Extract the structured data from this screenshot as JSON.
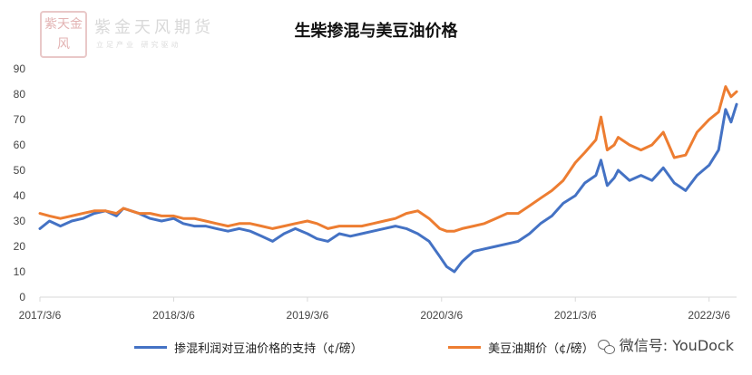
{
  "logo": {
    "seal_text": "紫天金风",
    "company_name": "紫金天风期货",
    "slogan": "立足产业 研究驱动"
  },
  "watermark": {
    "text": "微信号: YouDock"
  },
  "colors": {
    "support_series": "#4472C4",
    "futures_series": "#ED7D31",
    "axis": "#d9d9d9"
  },
  "chart_data": {
    "type": "line",
    "title": "生柴掺混与美豆油价格",
    "xlabel": "",
    "ylabel": "",
    "ylim": [
      0,
      90
    ],
    "yticks": [
      0,
      10,
      20,
      30,
      40,
      50,
      60,
      70,
      80,
      90
    ],
    "xlim": [
      "2017-03-06",
      "2022-05-20"
    ],
    "xtick_labels": [
      "2017/3/6",
      "2018/3/6",
      "2019/3/6",
      "2020/3/6",
      "2021/3/6",
      "2022/3/6"
    ],
    "grid": false,
    "legend_position": "bottom",
    "series": [
      {
        "name": "掺混利润对豆油价格的支持（¢/磅）",
        "color": "#4472C4",
        "points": [
          [
            "2017-03-06",
            27
          ],
          [
            "2017-04-01",
            30
          ],
          [
            "2017-05-01",
            28
          ],
          [
            "2017-06-01",
            30
          ],
          [
            "2017-07-01",
            31
          ],
          [
            "2017-08-01",
            33
          ],
          [
            "2017-09-01",
            34
          ],
          [
            "2017-10-01",
            32
          ],
          [
            "2017-10-20",
            35
          ],
          [
            "2017-11-10",
            34
          ],
          [
            "2017-12-01",
            33
          ],
          [
            "2018-01-01",
            31
          ],
          [
            "2018-02-01",
            30
          ],
          [
            "2018-03-06",
            31
          ],
          [
            "2018-04-01",
            29
          ],
          [
            "2018-05-01",
            28
          ],
          [
            "2018-06-01",
            28
          ],
          [
            "2018-07-01",
            27
          ],
          [
            "2018-08-01",
            26
          ],
          [
            "2018-09-01",
            27
          ],
          [
            "2018-10-01",
            26
          ],
          [
            "2018-11-01",
            24
          ],
          [
            "2018-12-01",
            22
          ],
          [
            "2019-01-01",
            25
          ],
          [
            "2019-02-01",
            27
          ],
          [
            "2019-03-06",
            25
          ],
          [
            "2019-04-01",
            23
          ],
          [
            "2019-05-01",
            22
          ],
          [
            "2019-06-01",
            25
          ],
          [
            "2019-07-01",
            24
          ],
          [
            "2019-08-01",
            25
          ],
          [
            "2019-09-01",
            26
          ],
          [
            "2019-10-01",
            27
          ],
          [
            "2019-11-01",
            28
          ],
          [
            "2019-12-01",
            27
          ],
          [
            "2020-01-01",
            25
          ],
          [
            "2020-02-01",
            22
          ],
          [
            "2020-03-01",
            16
          ],
          [
            "2020-03-20",
            12
          ],
          [
            "2020-04-10",
            10
          ],
          [
            "2020-05-01",
            14
          ],
          [
            "2020-06-01",
            18
          ],
          [
            "2020-07-01",
            19
          ],
          [
            "2020-08-01",
            20
          ],
          [
            "2020-09-01",
            21
          ],
          [
            "2020-10-01",
            22
          ],
          [
            "2020-11-01",
            25
          ],
          [
            "2020-12-01",
            29
          ],
          [
            "2021-01-01",
            32
          ],
          [
            "2021-02-01",
            37
          ],
          [
            "2021-03-06",
            40
          ],
          [
            "2021-04-01",
            45
          ],
          [
            "2021-05-01",
            48
          ],
          [
            "2021-05-15",
            54
          ],
          [
            "2021-06-01",
            44
          ],
          [
            "2021-06-20",
            47
          ],
          [
            "2021-07-01",
            50
          ],
          [
            "2021-08-01",
            46
          ],
          [
            "2021-09-01",
            48
          ],
          [
            "2021-10-01",
            46
          ],
          [
            "2021-11-01",
            51
          ],
          [
            "2021-12-01",
            45
          ],
          [
            "2022-01-01",
            42
          ],
          [
            "2022-02-01",
            48
          ],
          [
            "2022-03-06",
            52
          ],
          [
            "2022-04-01",
            58
          ],
          [
            "2022-04-20",
            74
          ],
          [
            "2022-05-05",
            69
          ],
          [
            "2022-05-20",
            76
          ]
        ]
      },
      {
        "name": "美豆油期价（¢/磅）",
        "color": "#ED7D31",
        "points": [
          [
            "2017-03-06",
            33
          ],
          [
            "2017-04-01",
            32
          ],
          [
            "2017-05-01",
            31
          ],
          [
            "2017-06-01",
            32
          ],
          [
            "2017-07-01",
            33
          ],
          [
            "2017-08-01",
            34
          ],
          [
            "2017-09-01",
            34
          ],
          [
            "2017-10-01",
            33
          ],
          [
            "2017-10-20",
            35
          ],
          [
            "2017-11-10",
            34
          ],
          [
            "2017-12-01",
            33
          ],
          [
            "2018-01-01",
            33
          ],
          [
            "2018-02-01",
            32
          ],
          [
            "2018-03-06",
            32
          ],
          [
            "2018-04-01",
            31
          ],
          [
            "2018-05-01",
            31
          ],
          [
            "2018-06-01",
            30
          ],
          [
            "2018-07-01",
            29
          ],
          [
            "2018-08-01",
            28
          ],
          [
            "2018-09-01",
            29
          ],
          [
            "2018-10-01",
            29
          ],
          [
            "2018-11-01",
            28
          ],
          [
            "2018-12-01",
            27
          ],
          [
            "2019-01-01",
            28
          ],
          [
            "2019-02-01",
            29
          ],
          [
            "2019-03-06",
            30
          ],
          [
            "2019-04-01",
            29
          ],
          [
            "2019-05-01",
            27
          ],
          [
            "2019-06-01",
            28
          ],
          [
            "2019-07-01",
            28
          ],
          [
            "2019-08-01",
            28
          ],
          [
            "2019-09-01",
            29
          ],
          [
            "2019-10-01",
            30
          ],
          [
            "2019-11-01",
            31
          ],
          [
            "2019-12-01",
            33
          ],
          [
            "2020-01-01",
            34
          ],
          [
            "2020-02-01",
            31
          ],
          [
            "2020-03-01",
            27
          ],
          [
            "2020-03-20",
            26
          ],
          [
            "2020-04-10",
            26
          ],
          [
            "2020-05-01",
            27
          ],
          [
            "2020-06-01",
            28
          ],
          [
            "2020-07-01",
            29
          ],
          [
            "2020-08-01",
            31
          ],
          [
            "2020-09-01",
            33
          ],
          [
            "2020-10-01",
            33
          ],
          [
            "2020-11-01",
            36
          ],
          [
            "2020-12-01",
            39
          ],
          [
            "2021-01-01",
            42
          ],
          [
            "2021-02-01",
            46
          ],
          [
            "2021-03-06",
            53
          ],
          [
            "2021-04-01",
            57
          ],
          [
            "2021-05-01",
            62
          ],
          [
            "2021-05-15",
            71
          ],
          [
            "2021-06-01",
            58
          ],
          [
            "2021-06-20",
            60
          ],
          [
            "2021-07-01",
            63
          ],
          [
            "2021-08-01",
            60
          ],
          [
            "2021-09-01",
            58
          ],
          [
            "2021-10-01",
            60
          ],
          [
            "2021-11-01",
            65
          ],
          [
            "2021-12-01",
            55
          ],
          [
            "2022-01-01",
            56
          ],
          [
            "2022-02-01",
            65
          ],
          [
            "2022-03-06",
            70
          ],
          [
            "2022-04-01",
            73
          ],
          [
            "2022-04-20",
            83
          ],
          [
            "2022-05-05",
            79
          ],
          [
            "2022-05-20",
            81
          ]
        ]
      }
    ]
  }
}
